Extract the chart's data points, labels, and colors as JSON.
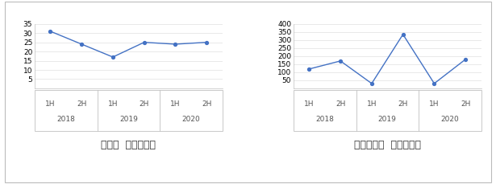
{
  "left_chart": {
    "values": [
      31,
      24,
      17,
      25,
      24,
      25
    ],
    "x_labels": [
      "1H",
      "2H",
      "1H",
      "2H",
      "1H",
      "2H"
    ],
    "year_labels": [
      "2018",
      "2019",
      "2020"
    ],
    "ylim": [
      0,
      35
    ],
    "yticks": [
      5,
      10,
      15,
      20,
      25,
      30,
      35
    ],
    "title": "《국가  철도기관》",
    "line_color": "#4472C4"
  },
  "right_chart": {
    "values": [
      120,
      170,
      30,
      335,
      30,
      180
    ],
    "x_labels": [
      "1H",
      "2H",
      "1H",
      "2H",
      "1H",
      "2H"
    ],
    "year_labels": [
      "2018",
      "2019",
      "2020"
    ],
    "ylim": [
      0,
      400
    ],
    "yticks": [
      50,
      100,
      150,
      200,
      250,
      300,
      350,
      400
    ],
    "title": "《도시철도  운영기관》",
    "line_color": "#4472C4"
  },
  "background_color": "#ffffff",
  "tick_label_fontsize": 6.5,
  "title_fontsize": 9,
  "year_fontsize": 6.5,
  "line_color": "#4472C4",
  "grid_color": "#e0e0e0",
  "border_color": "#c0c0c0"
}
